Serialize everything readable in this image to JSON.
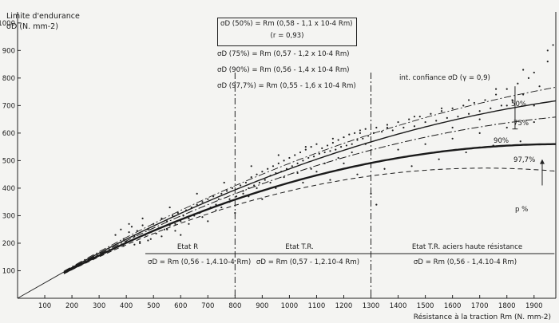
{
  "chart_data": {
    "type": "scatter",
    "title": "Limite d'endurance",
    "ylabel": "Limite d'endurance σD (N. mm-2)",
    "ylabel_lines": [
      "Limite d'endurance",
      "σD  (N. mm-2)"
    ],
    "xlabel": "Résistance à la traction Rm (N. mm-2)",
    "xlim": [
      0,
      1980
    ],
    "ylim": [
      0,
      1040
    ],
    "x_ticks": [
      100,
      200,
      300,
      400,
      500,
      600,
      700,
      800,
      900,
      1000,
      1100,
      1200,
      1300,
      1400,
      1500,
      1600,
      1700,
      1800,
      1900
    ],
    "y_ticks": [
      100,
      200,
      300,
      400,
      500,
      600,
      700,
      800,
      900,
      1000
    ],
    "legend": [
      {
        "label": "σD (50%) = Rm (0,58 - 1,1 x 10-4 Rm)",
        "note": "(r = 0,93)",
        "a": 0.58,
        "b": 0.00011
      },
      {
        "label": "σD (75%) = Rm (0,57 - 1,2 x 10-4 Rm)",
        "a": 0.57,
        "b": 0.00012
      },
      {
        "label": "σD (90%) = Rm (0,56 - 1,4 x 10-4 Rm)",
        "a": 0.56,
        "b": 0.00014
      },
      {
        "label": "σD (97,7%) = Rm (0,55 - 1,6 x 10-4 Rm)",
        "a": 0.55,
        "b": 0.00016
      }
    ],
    "series": [
      {
        "name": "50%",
        "label": "50%",
        "a": 0.58,
        "b": 0.00011,
        "style": "solid",
        "x_range": [
          170,
          1980
        ]
      },
      {
        "name": "75%",
        "label": "75%",
        "a": 0.57,
        "b": 0.00012,
        "style": "dashdot",
        "x_range": [
          170,
          1980
        ]
      },
      {
        "name": "90%",
        "label": "90%",
        "a": 0.56,
        "b": 0.00014,
        "style": "bold",
        "x_range": [
          170,
          1980
        ]
      },
      {
        "name": "97,7%",
        "label": "97,7%",
        "a": 0.55,
        "b": 0.00016,
        "style": "dashed",
        "x_range": [
          170,
          1980
        ]
      }
    ],
    "confidence_annotation": "int. confiance  σD  (γ = 0,9)",
    "p_annotation": "p %",
    "region_boundaries": [
      800,
      1300
    ],
    "regions": [
      {
        "name": "Etat R",
        "formula": "σD = Rm (0,56 - 1,4.10-4 Rm)",
        "x_range": [
          170,
          800
        ]
      },
      {
        "name": "Etat T.R.",
        "formula": "σD = Rm (0,57 - 1,2.10-4 Rm)",
        "x_range": [
          800,
          1300
        ]
      },
      {
        "name": "Etat T.R. aciers haute résistance",
        "formula": "σD = Rm (0,56 - 1,4.10-4 Rm)",
        "x_range": [
          1300,
          1980
        ]
      }
    ],
    "scatter_points": [
      [
        360,
        230
      ],
      [
        380,
        250
      ],
      [
        390,
        215
      ],
      [
        400,
        205
      ],
      [
        410,
        240
      ],
      [
        420,
        260
      ],
      [
        430,
        225
      ],
      [
        440,
        245
      ],
      [
        450,
        205
      ],
      [
        460,
        265
      ],
      [
        470,
        230
      ],
      [
        480,
        250
      ],
      [
        490,
        215
      ],
      [
        500,
        270
      ],
      [
        510,
        235
      ],
      [
        520,
        255
      ],
      [
        530,
        290
      ],
      [
        540,
        250
      ],
      [
        550,
        280
      ],
      [
        560,
        265
      ],
      [
        570,
        300
      ],
      [
        580,
        270
      ],
      [
        590,
        310
      ],
      [
        600,
        280
      ],
      [
        610,
        300
      ],
      [
        620,
        320
      ],
      [
        630,
        290
      ],
      [
        640,
        330
      ],
      [
        650,
        305
      ],
      [
        660,
        340
      ],
      [
        670,
        310
      ],
      [
        680,
        350
      ],
      [
        690,
        320
      ],
      [
        700,
        360
      ],
      [
        710,
        330
      ],
      [
        720,
        370
      ],
      [
        730,
        340
      ],
      [
        740,
        360
      ],
      [
        750,
        380
      ],
      [
        760,
        345
      ],
      [
        770,
        390
      ],
      [
        780,
        360
      ],
      [
        790,
        400
      ],
      [
        805,
        370
      ],
      [
        820,
        410
      ],
      [
        830,
        390
      ],
      [
        840,
        420
      ],
      [
        850,
        400
      ],
      [
        860,
        440
      ],
      [
        870,
        410
      ],
      [
        880,
        450
      ],
      [
        890,
        420
      ],
      [
        900,
        460
      ],
      [
        910,
        430
      ],
      [
        920,
        470
      ],
      [
        930,
        445
      ],
      [
        940,
        480
      ],
      [
        950,
        455
      ],
      [
        960,
        490
      ],
      [
        970,
        460
      ],
      [
        980,
        500
      ],
      [
        990,
        470
      ],
      [
        1000,
        510
      ],
      [
        1010,
        480
      ],
      [
        1020,
        520
      ],
      [
        1030,
        490
      ],
      [
        1040,
        530
      ],
      [
        1050,
        500
      ],
      [
        1060,
        540
      ],
      [
        1070,
        510
      ],
      [
        1080,
        550
      ],
      [
        1090,
        515
      ],
      [
        1100,
        560
      ],
      [
        1110,
        525
      ],
      [
        1120,
        545
      ],
      [
        1130,
        530
      ],
      [
        1140,
        555
      ],
      [
        1150,
        535
      ],
      [
        1160,
        565
      ],
      [
        1170,
        540
      ],
      [
        1180,
        575
      ],
      [
        1190,
        550
      ],
      [
        1200,
        585
      ],
      [
        1210,
        555
      ],
      [
        1220,
        595
      ],
      [
        1230,
        560
      ],
      [
        1240,
        600
      ],
      [
        1250,
        575
      ],
      [
        1260,
        610
      ],
      [
        1270,
        580
      ],
      [
        1280,
        615
      ],
      [
        1290,
        590
      ],
      [
        1310,
        600
      ],
      [
        1320,
        620
      ],
      [
        1340,
        605
      ],
      [
        1360,
        630
      ],
      [
        1380,
        610
      ],
      [
        1400,
        640
      ],
      [
        1420,
        620
      ],
      [
        1440,
        650
      ],
      [
        1460,
        625
      ],
      [
        1480,
        660
      ],
      [
        1500,
        640
      ],
      [
        1520,
        670
      ],
      [
        1540,
        645
      ],
      [
        1560,
        680
      ],
      [
        1580,
        655
      ],
      [
        1600,
        690
      ],
      [
        1620,
        660
      ],
      [
        1640,
        700
      ],
      [
        1660,
        670
      ],
      [
        1680,
        710
      ],
      [
        1700,
        680
      ],
      [
        1720,
        720
      ],
      [
        1740,
        690
      ],
      [
        1760,
        740
      ],
      [
        1780,
        700
      ],
      [
        1800,
        760
      ],
      [
        1820,
        720
      ],
      [
        1840,
        780
      ],
      [
        1860,
        740
      ],
      [
        1880,
        800
      ],
      [
        1900,
        820
      ],
      [
        1920,
        770
      ],
      [
        1950,
        900
      ],
      [
        1970,
        920
      ],
      [
        600,
        230
      ],
      [
        700,
        280
      ],
      [
        800,
        310
      ],
      [
        900,
        360
      ],
      [
        1000,
        420
      ],
      [
        1100,
        460
      ],
      [
        1200,
        490
      ],
      [
        1300,
        380
      ],
      [
        1400,
        540
      ],
      [
        1500,
        560
      ],
      [
        1600,
        580
      ],
      [
        1700,
        600
      ],
      [
        1800,
        620
      ],
      [
        1900,
        640
      ],
      [
        1850,
        570
      ],
      [
        1750,
        555
      ],
      [
        1650,
        530
      ],
      [
        1550,
        505
      ],
      [
        1450,
        480
      ],
      [
        1350,
        470
      ],
      [
        1250,
        450
      ],
      [
        1150,
        430
      ],
      [
        1050,
        420
      ],
      [
        950,
        400
      ],
      [
        850,
        370
      ],
      [
        750,
        330
      ],
      [
        650,
        300
      ],
      [
        550,
        250
      ],
      [
        450,
        200
      ],
      [
        1320,
        340
      ],
      [
        1280,
        560
      ],
      [
        1230,
        530
      ],
      [
        1180,
        510
      ],
      [
        1130,
        490
      ],
      [
        1080,
        470
      ],
      [
        1030,
        455
      ],
      [
        980,
        440
      ],
      [
        930,
        420
      ],
      [
        880,
        400
      ],
      [
        830,
        380
      ],
      [
        780,
        350
      ],
      [
        730,
        320
      ],
      [
        680,
        295
      ],
      [
        630,
        270
      ],
      [
        580,
        245
      ],
      [
        530,
        225
      ],
      [
        480,
        210
      ],
      [
        430,
        195
      ],
      [
        1600,
        620
      ],
      [
        1700,
        650
      ],
      [
        1800,
        700
      ],
      [
        1900,
        700
      ],
      [
        1950,
        860
      ],
      [
        1860,
        830
      ],
      [
        1760,
        760
      ],
      [
        1660,
        720
      ],
      [
        1560,
        690
      ],
      [
        1460,
        660
      ],
      [
        1360,
        620
      ],
      [
        1260,
        600
      ],
      [
        1160,
        580
      ],
      [
        1060,
        550
      ],
      [
        960,
        520
      ],
      [
        860,
        480
      ],
      [
        760,
        420
      ],
      [
        660,
        380
      ],
      [
        560,
        330
      ],
      [
        460,
        290
      ],
      [
        410,
        270
      ],
      [
        390,
        190
      ]
    ]
  }
}
